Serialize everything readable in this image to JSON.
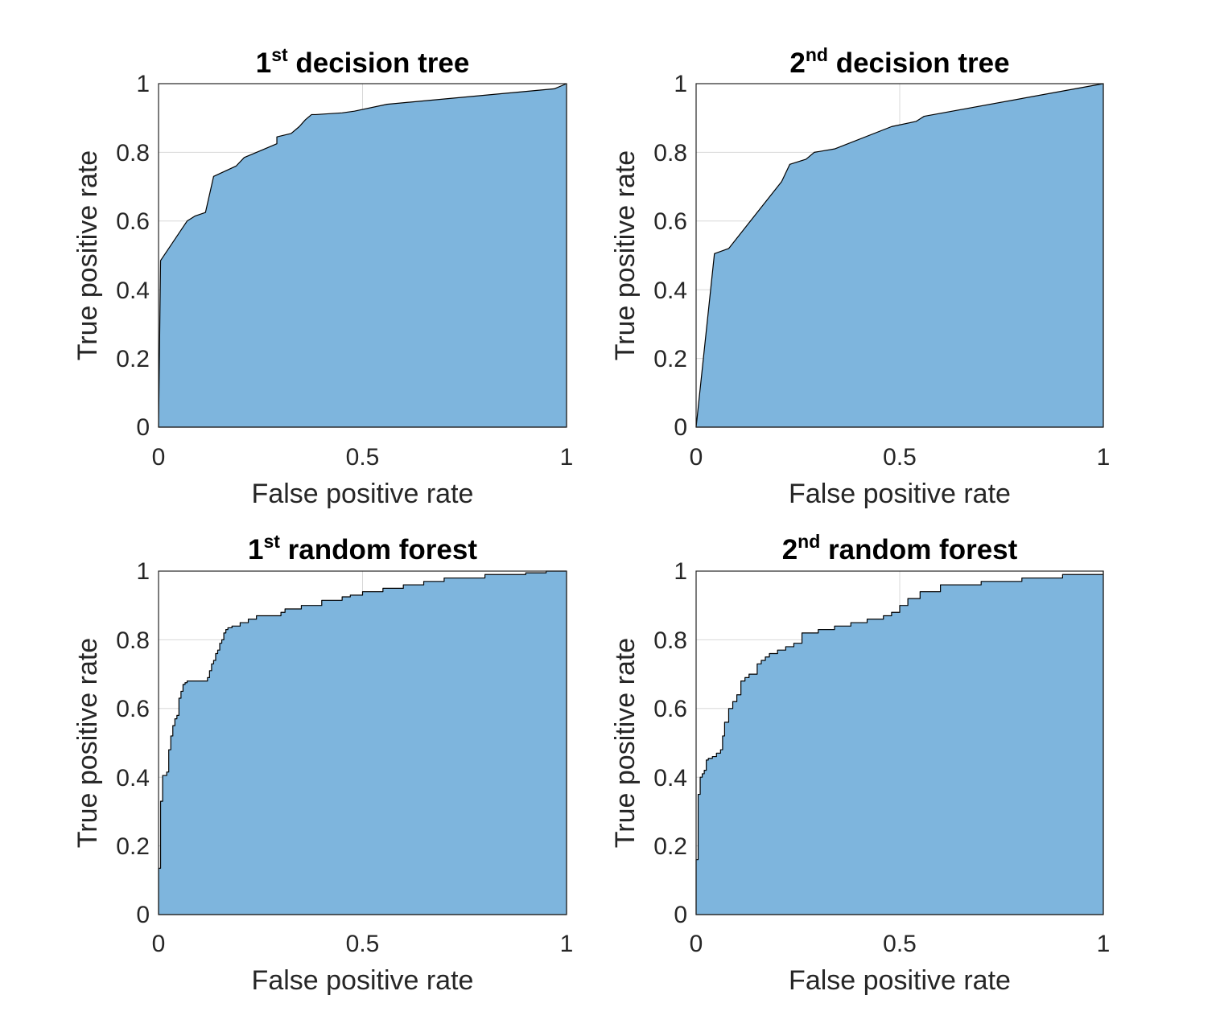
{
  "colors": {
    "fill": "#7EB5DD",
    "edge": "#000000",
    "axis": "#262626"
  },
  "chart_data": [
    {
      "type": "area",
      "title": {
        "ordinal": "1",
        "suffix": "st",
        "rest": " decision tree"
      },
      "xlabel": "False positive rate",
      "ylabel": "True positive rate",
      "xlim": [
        0,
        1
      ],
      "ylim": [
        0,
        1
      ],
      "xticks": [
        "0",
        "0.5",
        "1"
      ],
      "yticks": [
        "0",
        "0.2",
        "0.4",
        "0.6",
        "0.8",
        "1"
      ],
      "grid": true,
      "steps": false,
      "series": [
        {
          "x": [
            0,
            0.005,
            0.07,
            0.09,
            0.115,
            0.135,
            0.19,
            0.21,
            0.25,
            0.29,
            0.29,
            0.325,
            0.345,
            0.36,
            0.375,
            0.385,
            0.45,
            0.48,
            0.56,
            0.97,
            1.0
          ],
          "y": [
            0,
            0.485,
            0.6,
            0.615,
            0.625,
            0.73,
            0.76,
            0.785,
            0.805,
            0.825,
            0.845,
            0.855,
            0.875,
            0.895,
            0.91,
            0.91,
            0.915,
            0.92,
            0.94,
            0.985,
            1.0
          ]
        }
      ]
    },
    {
      "type": "area",
      "title": {
        "ordinal": "2",
        "suffix": "nd",
        "rest": " decision tree"
      },
      "xlabel": "False positive rate",
      "ylabel": "True positive rate",
      "xlim": [
        0,
        1
      ],
      "ylim": [
        0,
        1
      ],
      "xticks": [
        "0",
        "0.5",
        "1"
      ],
      "yticks": [
        "0",
        "0.2",
        "0.4",
        "0.6",
        "0.8",
        "1"
      ],
      "grid": true,
      "steps": false,
      "series": [
        {
          "x": [
            0,
            0.045,
            0.08,
            0.21,
            0.23,
            0.27,
            0.29,
            0.34,
            0.48,
            0.54,
            0.56,
            1.0
          ],
          "y": [
            0,
            0.505,
            0.52,
            0.715,
            0.765,
            0.78,
            0.8,
            0.81,
            0.875,
            0.89,
            0.905,
            1.0
          ]
        }
      ]
    },
    {
      "type": "area",
      "title": {
        "ordinal": "1",
        "suffix": "st",
        "rest": " random forest"
      },
      "xlabel": "False positive rate",
      "ylabel": "True positive rate",
      "xlim": [
        0,
        1
      ],
      "ylim": [
        0,
        1
      ],
      "xticks": [
        "0",
        "0.5",
        "1"
      ],
      "yticks": [
        "0",
        "0.2",
        "0.4",
        "0.6",
        "0.8",
        "1"
      ],
      "grid": true,
      "steps": true,
      "series": [
        {
          "x": [
            0,
            0.005,
            0.01,
            0.02,
            0.025,
            0.03,
            0.035,
            0.04,
            0.045,
            0.05,
            0.055,
            0.06,
            0.065,
            0.07,
            0.08,
            0.12,
            0.125,
            0.13,
            0.135,
            0.14,
            0.145,
            0.15,
            0.155,
            0.16,
            0.165,
            0.17,
            0.18,
            0.2,
            0.22,
            0.24,
            0.3,
            0.31,
            0.35,
            0.4,
            0.45,
            0.47,
            0.5,
            0.55,
            0.6,
            0.65,
            0.7,
            0.8,
            0.9,
            0.95,
            1.0
          ],
          "y": [
            0.135,
            0.33,
            0.405,
            0.415,
            0.48,
            0.52,
            0.55,
            0.57,
            0.58,
            0.63,
            0.65,
            0.67,
            0.675,
            0.68,
            0.68,
            0.69,
            0.71,
            0.73,
            0.74,
            0.76,
            0.77,
            0.79,
            0.8,
            0.82,
            0.83,
            0.835,
            0.84,
            0.85,
            0.86,
            0.87,
            0.88,
            0.89,
            0.9,
            0.915,
            0.925,
            0.93,
            0.94,
            0.95,
            0.96,
            0.97,
            0.98,
            0.99,
            0.995,
            1.0,
            1.0
          ]
        }
      ]
    },
    {
      "type": "area",
      "title": {
        "ordinal": "2",
        "suffix": "nd",
        "rest": " random forest"
      },
      "xlabel": "False positive rate",
      "ylabel": "True positive rate",
      "xlim": [
        0,
        1
      ],
      "ylim": [
        0,
        1
      ],
      "xticks": [
        "0",
        "0.5",
        "1"
      ],
      "yticks": [
        "0",
        "0.2",
        "0.4",
        "0.6",
        "0.8",
        "1"
      ],
      "grid": true,
      "steps": true,
      "series": [
        {
          "x": [
            0,
            0.005,
            0.01,
            0.015,
            0.02,
            0.025,
            0.03,
            0.04,
            0.05,
            0.06,
            0.065,
            0.07,
            0.08,
            0.09,
            0.1,
            0.11,
            0.12,
            0.13,
            0.15,
            0.16,
            0.17,
            0.18,
            0.2,
            0.22,
            0.24,
            0.26,
            0.3,
            0.34,
            0.38,
            0.42,
            0.46,
            0.48,
            0.5,
            0.52,
            0.55,
            0.6,
            0.7,
            0.8,
            0.9,
            1.0
          ],
          "y": [
            0.16,
            0.35,
            0.4,
            0.41,
            0.42,
            0.45,
            0.455,
            0.46,
            0.47,
            0.48,
            0.52,
            0.56,
            0.6,
            0.62,
            0.64,
            0.68,
            0.69,
            0.7,
            0.73,
            0.74,
            0.75,
            0.76,
            0.77,
            0.78,
            0.79,
            0.82,
            0.83,
            0.84,
            0.85,
            0.86,
            0.87,
            0.88,
            0.9,
            0.92,
            0.94,
            0.96,
            0.97,
            0.98,
            0.99,
            1.0
          ]
        }
      ]
    }
  ]
}
